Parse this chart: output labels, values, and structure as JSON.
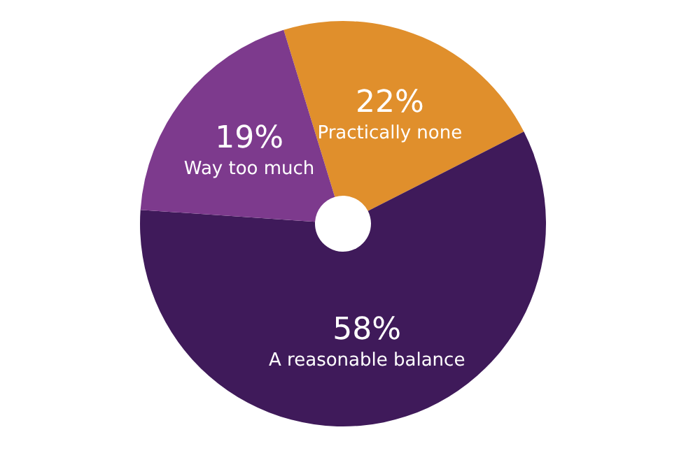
{
  "chart_data": {
    "type": "donut",
    "categories": [
      "Practically none",
      "A reasonable balance",
      "Way too much"
    ],
    "values": [
      22,
      58,
      19
    ],
    "value_labels": [
      "22%",
      "58%",
      "19%"
    ],
    "colors": [
      "#e08f2c",
      "#3f1a5a",
      "#7d3a8d"
    ],
    "legend": false
  }
}
